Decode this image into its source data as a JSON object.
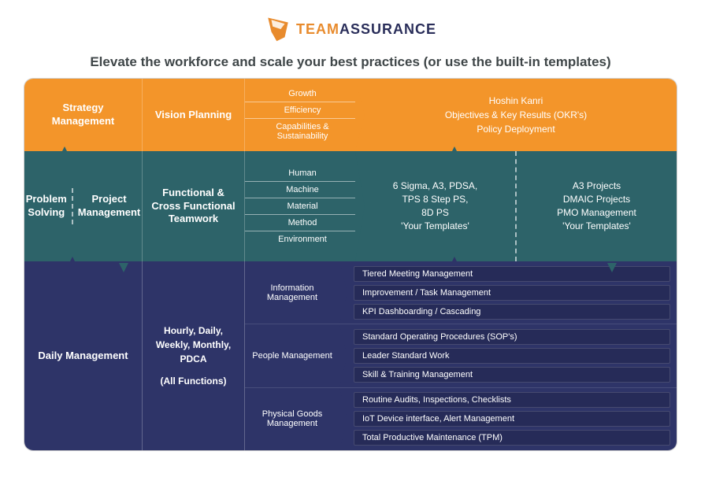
{
  "brand": {
    "word1": "TEAM",
    "word2": "ASSURANCE"
  },
  "headline": "Elevate the workforce and scale your best practices (or use the built-in templates)",
  "colors": {
    "orange": "#f3952a",
    "teal": "#2d6369",
    "navy": "#2e3468",
    "navyDark": "#262b58",
    "headline": "#3f4648"
  },
  "row1": {
    "colA": "Strategy Management",
    "colB": "Vision Planning",
    "pills": [
      "Growth",
      "Efficiency",
      "Capabilities & Sustainability"
    ],
    "right": [
      "Hoshin Kanri",
      "Objectives & Key Results (OKR's)",
      "Policy Deployment"
    ]
  },
  "row2": {
    "colA_left": "Problem Solving",
    "colA_right": "Project Management",
    "colB": "Functional & Cross Functional Teamwork",
    "pills": [
      "Human",
      "Machine",
      "Material",
      "Method",
      "Environment"
    ],
    "rightA": [
      "6 Sigma, A3, PDSA,",
      "TPS 8 Step PS,",
      "8D PS",
      "'Your Templates'"
    ],
    "rightB": [
      "A3 Projects",
      "DMAIC Projects",
      "PMO Management",
      "'Your Templates'"
    ]
  },
  "row3": {
    "colA": "Daily Management",
    "colB_line1": "Hourly, Daily, Weekly, Monthly, PDCA",
    "colB_line2": "(All Functions)",
    "groups": [
      {
        "label": "Information Management",
        "lines": [
          "Tiered Meeting Management",
          "Improvement / Task Management",
          "KPI Dashboarding / Cascading"
        ]
      },
      {
        "label": "People Management",
        "lines": [
          "Standard Operating Procedures (SOP's)",
          "Leader Standard Work",
          "Skill & Training Management"
        ]
      },
      {
        "label": "Physical Goods Management",
        "lines": [
          "Routine Audits, Inspections, Checklists",
          "IoT Device interface, Alert Management",
          "Total Productive Maintenance (TPM)"
        ]
      }
    ]
  }
}
